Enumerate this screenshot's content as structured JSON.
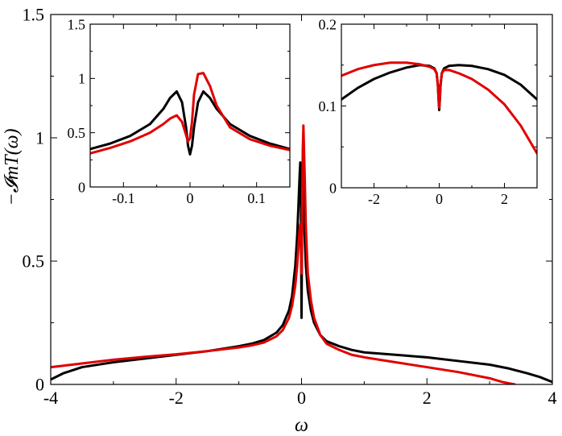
{
  "chart_data": [
    {
      "id": "main",
      "type": "line",
      "xlabel": "ω",
      "ylabel": "−𝓘mT(ω)",
      "xlim": [
        -4,
        4
      ],
      "ylim": [
        0,
        1.5
      ],
      "xticks": [
        -4,
        -2,
        0,
        2,
        4
      ],
      "xtick_labels": [
        "-4",
        "-2",
        "0",
        "2",
        "4"
      ],
      "yticks": [
        0,
        0.5,
        1,
        1.5
      ],
      "ytick_labels": [
        "0",
        "0.5",
        "1",
        "1.5"
      ],
      "grid": false,
      "series": [
        {
          "color": "#000000",
          "x": [
            -4.0,
            -3.8,
            -3.5,
            -3.0,
            -2.5,
            -2.0,
            -1.5,
            -1.0,
            -0.8,
            -0.6,
            -0.4,
            -0.3,
            -0.2,
            -0.15,
            -0.1,
            -0.07,
            -0.05,
            -0.03,
            -0.02,
            -0.01,
            -0.005,
            0.0,
            0.005,
            0.01,
            0.02,
            0.03,
            0.05,
            0.07,
            0.1,
            0.15,
            0.2,
            0.3,
            0.4,
            0.6,
            0.8,
            1.0,
            1.5,
            2.0,
            2.5,
            3.0,
            3.3,
            3.6,
            3.8,
            4.0
          ],
          "y": [
            0.02,
            0.045,
            0.07,
            0.09,
            0.105,
            0.12,
            0.135,
            0.155,
            0.165,
            0.18,
            0.21,
            0.24,
            0.3,
            0.36,
            0.48,
            0.6,
            0.72,
            0.85,
            0.9,
            0.8,
            0.5,
            0.27,
            0.5,
            0.8,
            0.85,
            0.8,
            0.6,
            0.48,
            0.38,
            0.3,
            0.25,
            0.2,
            0.175,
            0.155,
            0.14,
            0.13,
            0.12,
            0.11,
            0.095,
            0.08,
            0.065,
            0.045,
            0.03,
            0.01
          ]
        },
        {
          "color": "#e00000",
          "x": [
            -4.0,
            -3.5,
            -3.0,
            -2.5,
            -2.0,
            -1.5,
            -1.0,
            -0.8,
            -0.6,
            -0.4,
            -0.3,
            -0.2,
            -0.15,
            -0.1,
            -0.07,
            -0.05,
            -0.03,
            -0.02,
            -0.01,
            0.0,
            0.01,
            0.02,
            0.03,
            0.05,
            0.07,
            0.1,
            0.15,
            0.2,
            0.3,
            0.4,
            0.6,
            0.8,
            1.0,
            1.5,
            2.0,
            2.5,
            3.0,
            3.2,
            3.4
          ],
          "y": [
            0.07,
            0.085,
            0.1,
            0.112,
            0.122,
            0.135,
            0.15,
            0.158,
            0.17,
            0.195,
            0.22,
            0.27,
            0.32,
            0.4,
            0.48,
            0.56,
            0.63,
            0.65,
            0.55,
            0.45,
            0.7,
            0.95,
            1.05,
            0.85,
            0.63,
            0.45,
            0.34,
            0.27,
            0.2,
            0.165,
            0.14,
            0.12,
            0.11,
            0.09,
            0.07,
            0.05,
            0.025,
            0.01,
            0.0
          ]
        }
      ]
    },
    {
      "id": "inset-left",
      "type": "line",
      "xlim": [
        -0.15,
        0.15
      ],
      "ylim": [
        0,
        1.5
      ],
      "xticks": [
        -0.1,
        0,
        0.1
      ],
      "xtick_labels": [
        "-0.1",
        "0",
        "0.1"
      ],
      "yticks": [
        0,
        0.5,
        1,
        1.5
      ],
      "ytick_labels": [
        "0",
        "0.5",
        "1",
        "1.5"
      ],
      "grid": false,
      "series": [
        {
          "color": "#000000",
          "x": [
            -0.15,
            -0.12,
            -0.09,
            -0.06,
            -0.04,
            -0.03,
            -0.02,
            -0.012,
            -0.006,
            -0.003,
            0.0,
            0.003,
            0.006,
            0.012,
            0.02,
            0.03,
            0.04,
            0.06,
            0.09,
            0.12,
            0.15
          ],
          "y": [
            0.35,
            0.4,
            0.47,
            0.58,
            0.72,
            0.82,
            0.88,
            0.78,
            0.55,
            0.38,
            0.3,
            0.38,
            0.55,
            0.78,
            0.88,
            0.82,
            0.72,
            0.58,
            0.47,
            0.4,
            0.35
          ]
        },
        {
          "color": "#e00000",
          "x": [
            -0.15,
            -0.12,
            -0.09,
            -0.06,
            -0.04,
            -0.03,
            -0.02,
            -0.012,
            -0.006,
            -0.003,
            0.0,
            0.003,
            0.006,
            0.012,
            0.02,
            0.03,
            0.04,
            0.06,
            0.09,
            0.12,
            0.15
          ],
          "y": [
            0.31,
            0.36,
            0.42,
            0.5,
            0.58,
            0.63,
            0.66,
            0.6,
            0.48,
            0.42,
            0.45,
            0.6,
            0.85,
            1.04,
            1.05,
            0.93,
            0.75,
            0.55,
            0.44,
            0.38,
            0.34
          ]
        }
      ]
    },
    {
      "id": "inset-right",
      "type": "line",
      "xlim": [
        -3,
        3
      ],
      "ylim": [
        0,
        0.2
      ],
      "xticks": [
        -2,
        0,
        2
      ],
      "xtick_labels": [
        "-2",
        "0",
        "2"
      ],
      "yticks": [
        0,
        0.1,
        0.2
      ],
      "ytick_labels": [
        "0",
        "0.1",
        "0.2"
      ],
      "grid": false,
      "series": [
        {
          "color": "#000000",
          "x": [
            -3.0,
            -2.5,
            -2.0,
            -1.5,
            -1.0,
            -0.6,
            -0.3,
            -0.15,
            -0.08,
            -0.04,
            -0.02,
            0.0,
            0.02,
            0.04,
            0.08,
            0.15,
            0.3,
            0.6,
            1.0,
            1.5,
            2.0,
            2.5,
            3.0
          ],
          "y": [
            0.108,
            0.122,
            0.133,
            0.141,
            0.147,
            0.15,
            0.149,
            0.146,
            0.14,
            0.125,
            0.108,
            0.095,
            0.108,
            0.125,
            0.14,
            0.146,
            0.149,
            0.15,
            0.149,
            0.145,
            0.138,
            0.126,
            0.108
          ]
        },
        {
          "color": "#e00000",
          "x": [
            -3.0,
            -2.5,
            -2.0,
            -1.5,
            -1.0,
            -0.6,
            -0.3,
            -0.15,
            -0.08,
            -0.04,
            -0.02,
            0.0,
            0.02,
            0.04,
            0.08,
            0.15,
            0.3,
            0.6,
            1.0,
            1.5,
            2.0,
            2.5,
            3.0
          ],
          "y": [
            0.137,
            0.145,
            0.15,
            0.153,
            0.153,
            0.151,
            0.148,
            0.145,
            0.14,
            0.125,
            0.11,
            0.098,
            0.11,
            0.125,
            0.14,
            0.144,
            0.144,
            0.14,
            0.133,
            0.12,
            0.102,
            0.076,
            0.042
          ]
        }
      ]
    }
  ]
}
